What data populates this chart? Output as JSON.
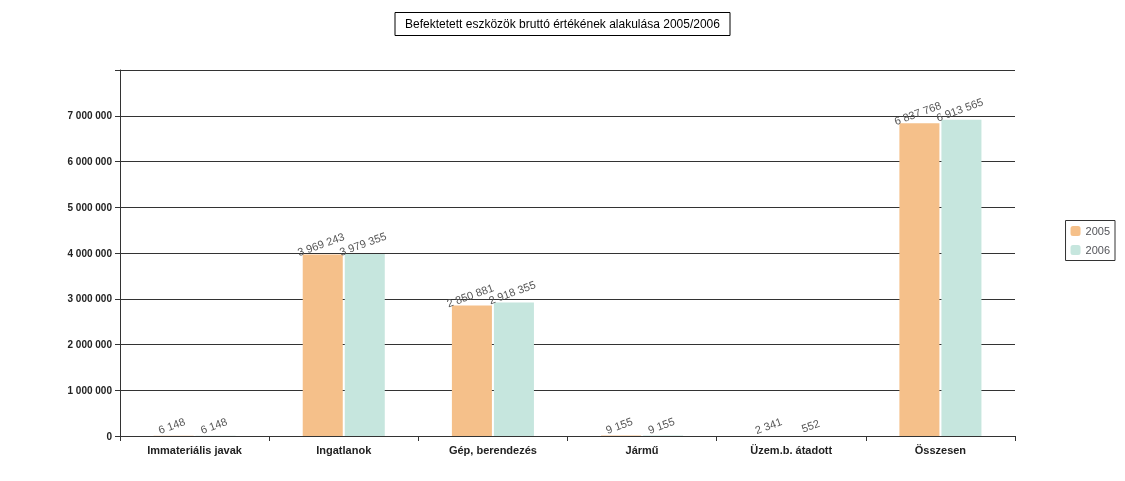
{
  "chart_data": {
    "type": "bar",
    "title": "Befektetett eszközök bruttó értékének alakulása 2005/2006",
    "categories": [
      "Immateriális javak",
      "Ingatlanok",
      "Gép, berendezés",
      "Jármű",
      "Üzem.b. átadott",
      "Összesen"
    ],
    "series": [
      {
        "name": "2005",
        "color": "#f5c08a",
        "values": [
          6148,
          3969243,
          2850881,
          9155,
          2341,
          6837768
        ],
        "value_labels": [
          "6 148",
          "3 969 243",
          "2 850 881",
          "9 155",
          "2 341",
          "6 837 768"
        ]
      },
      {
        "name": "2006",
        "color": "#c6e6de",
        "values": [
          6148,
          3979355,
          2918355,
          9155,
          552,
          6913565
        ],
        "value_labels": [
          "6 148",
          "3 979 355",
          "2 918 355",
          "9 155",
          "552",
          "6 913 565"
        ]
      }
    ],
    "ylim": [
      0,
      8000000
    ],
    "yticks": [
      {
        "value": 0,
        "label": "0"
      },
      {
        "value": 1000000,
        "label": "1 000 000"
      },
      {
        "value": 2000000,
        "label": "2 000 000"
      },
      {
        "value": 3000000,
        "label": "3 000 000"
      },
      {
        "value": 4000000,
        "label": "4 000 000"
      },
      {
        "value": 5000000,
        "label": "5 000 000"
      },
      {
        "value": 6000000,
        "label": "6 000 000"
      },
      {
        "value": 7000000,
        "label": "7 000 000"
      },
      {
        "value": 8000000,
        "label": null
      }
    ],
    "grid": "y",
    "legend": "right"
  }
}
